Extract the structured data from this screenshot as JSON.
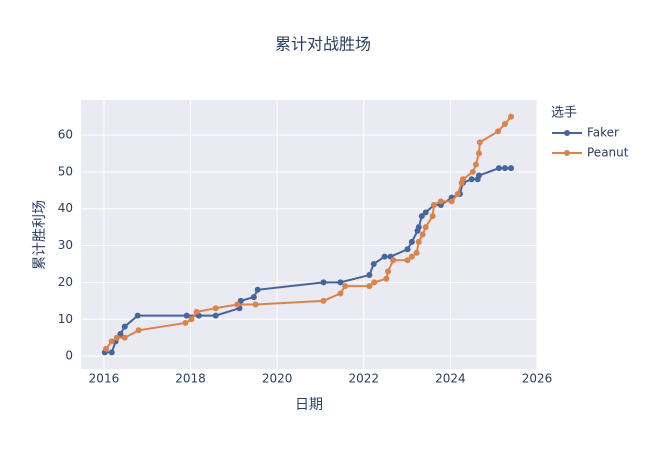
{
  "chart_data": {
    "type": "line",
    "title": "累计对战胜场",
    "xlabel": "日期",
    "ylabel": "累计胜利场",
    "legend_title": "选手",
    "xlim": [
      2015.47,
      2026.0
    ],
    "xticks": [
      2016,
      2018,
      2020,
      2022,
      2024,
      2026
    ],
    "ylim": [
      -3.5,
      69.5
    ],
    "yticks": [
      0,
      10,
      20,
      30,
      40,
      50,
      60
    ],
    "grid": true,
    "legend": "right",
    "series": [
      {
        "name": "Faker",
        "color": "#46659a",
        "x": [
          2016.02,
          2016.18,
          2016.27,
          2016.38,
          2016.48,
          2016.78,
          2017.91,
          2018.19,
          2018.58,
          2019.13,
          2019.16,
          2019.46,
          2019.55,
          2021.07,
          2021.46,
          2022.13,
          2022.23,
          2022.48,
          2022.62,
          2023.01,
          2023.11,
          2023.24,
          2023.27,
          2023.34,
          2023.43,
          2023.62,
          2023.78,
          2024.03,
          2024.22,
          2024.29,
          2024.49,
          2024.63,
          2024.66,
          2025.12,
          2025.26,
          2025.4
        ],
        "values": [
          1,
          1,
          4,
          6,
          8,
          11,
          11,
          11,
          11,
          13,
          15,
          16,
          18,
          20,
          20,
          22,
          25,
          27,
          27,
          29,
          31,
          34,
          35,
          38,
          39,
          41,
          41,
          43,
          44,
          47,
          48,
          48,
          49,
          51,
          51,
          51
        ]
      },
      {
        "name": "Peanut",
        "color": "#d9834f",
        "x": [
          2016.05,
          2016.18,
          2016.3,
          2016.48,
          2016.8,
          2017.88,
          2018.02,
          2018.14,
          2018.58,
          2019.08,
          2019.5,
          2021.07,
          2021.46,
          2021.57,
          2022.13,
          2022.24,
          2022.52,
          2022.56,
          2022.68,
          2023.01,
          2023.11,
          2023.22,
          2023.27,
          2023.36,
          2023.43,
          2023.59,
          2023.62,
          2023.78,
          2024.03,
          2024.17,
          2024.26,
          2024.29,
          2024.52,
          2024.59,
          2024.66,
          2024.68,
          2025.1,
          2025.26,
          2025.4
        ],
        "values": [
          2,
          4,
          5,
          5,
          7,
          9,
          10,
          12,
          13,
          14,
          14,
          15,
          17,
          19,
          19,
          20,
          21,
          23,
          26,
          26,
          27,
          28,
          31,
          33,
          35,
          38,
          41,
          42,
          42,
          44,
          47,
          48,
          50,
          52,
          55,
          58,
          61,
          63,
          65
        ]
      }
    ]
  }
}
